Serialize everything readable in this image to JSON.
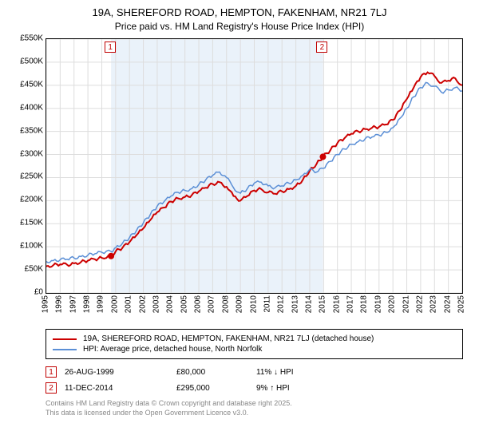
{
  "title": "19A, SHEREFORD ROAD, HEMPTON, FAKENHAM, NR21 7LJ",
  "subtitle": "Price paid vs. HM Land Registry's House Price Index (HPI)",
  "chart": {
    "type": "line",
    "background_color": "#ffffff",
    "band_color": "#eaf2fa",
    "grid_color": "#dddddd",
    "axis_color": "#000000",
    "ylim": [
      0,
      550000
    ],
    "ytick_step": 50000,
    "y_ticks": [
      "£0",
      "£50K",
      "£100K",
      "£150K",
      "£200K",
      "£250K",
      "£300K",
      "£350K",
      "£400K",
      "£450K",
      "£500K",
      "£550K"
    ],
    "x_years": [
      1995,
      1996,
      1997,
      1998,
      1999,
      2000,
      2001,
      2002,
      2003,
      2004,
      2005,
      2006,
      2007,
      2008,
      2009,
      2010,
      2011,
      2012,
      2013,
      2014,
      2015,
      2016,
      2017,
      2018,
      2019,
      2020,
      2021,
      2022,
      2023,
      2024,
      2025
    ],
    "series": [
      {
        "name": "property",
        "color": "#cc0000",
        "width": 2,
        "points": [
          [
            1995,
            58000
          ],
          [
            1995.5,
            60000
          ],
          [
            1996,
            62000
          ],
          [
            1996.5,
            61000
          ],
          [
            1997,
            64000
          ],
          [
            1997.5,
            67000
          ],
          [
            1998,
            70000
          ],
          [
            1998.5,
            73000
          ],
          [
            1999,
            76000
          ],
          [
            1999.67,
            80000
          ],
          [
            2000,
            90000
          ],
          [
            2000.5,
            98000
          ],
          [
            2001,
            110000
          ],
          [
            2001.5,
            125000
          ],
          [
            2002,
            140000
          ],
          [
            2002.5,
            158000
          ],
          [
            2003,
            175000
          ],
          [
            2003.5,
            185000
          ],
          [
            2004,
            198000
          ],
          [
            2004.5,
            205000
          ],
          [
            2005,
            208000
          ],
          [
            2005.5,
            212000
          ],
          [
            2006,
            220000
          ],
          [
            2006.5,
            228000
          ],
          [
            2007,
            236000
          ],
          [
            2007.5,
            240000
          ],
          [
            2008,
            230000
          ],
          [
            2008.5,
            210000
          ],
          [
            2009,
            200000
          ],
          [
            2009.5,
            210000
          ],
          [
            2010,
            222000
          ],
          [
            2010.5,
            225000
          ],
          [
            2011,
            218000
          ],
          [
            2011.5,
            215000
          ],
          [
            2012,
            220000
          ],
          [
            2012.5,
            225000
          ],
          [
            2013,
            232000
          ],
          [
            2013.5,
            245000
          ],
          [
            2014,
            265000
          ],
          [
            2014.5,
            280000
          ],
          [
            2014.95,
            295000
          ],
          [
            2015.5,
            310000
          ],
          [
            2016,
            325000
          ],
          [
            2016.5,
            335000
          ],
          [
            2017,
            345000
          ],
          [
            2017.5,
            350000
          ],
          [
            2018,
            355000
          ],
          [
            2018.5,
            358000
          ],
          [
            2019,
            360000
          ],
          [
            2019.5,
            365000
          ],
          [
            2020,
            375000
          ],
          [
            2020.5,
            395000
          ],
          [
            2021,
            420000
          ],
          [
            2021.5,
            445000
          ],
          [
            2022,
            468000
          ],
          [
            2022.5,
            478000
          ],
          [
            2023,
            470000
          ],
          [
            2023.5,
            455000
          ],
          [
            2024,
            460000
          ],
          [
            2024.5,
            465000
          ],
          [
            2025,
            450000
          ]
        ]
      },
      {
        "name": "hpi",
        "color": "#5b8fd6",
        "width": 1.5,
        "points": [
          [
            1995,
            68000
          ],
          [
            1995.5,
            70000
          ],
          [
            1996,
            72000
          ],
          [
            1996.5,
            73000
          ],
          [
            1997,
            76000
          ],
          [
            1997.5,
            79000
          ],
          [
            1998,
            82000
          ],
          [
            1998.5,
            85000
          ],
          [
            1999,
            88000
          ],
          [
            1999.67,
            90000
          ],
          [
            2000,
            98000
          ],
          [
            2000.5,
            108000
          ],
          [
            2001,
            120000
          ],
          [
            2001.5,
            135000
          ],
          [
            2002,
            152000
          ],
          [
            2002.5,
            170000
          ],
          [
            2003,
            188000
          ],
          [
            2003.5,
            198000
          ],
          [
            2004,
            210000
          ],
          [
            2004.5,
            218000
          ],
          [
            2005,
            222000
          ],
          [
            2005.5,
            226000
          ],
          [
            2006,
            235000
          ],
          [
            2006.5,
            245000
          ],
          [
            2007,
            255000
          ],
          [
            2007.5,
            262000
          ],
          [
            2008,
            250000
          ],
          [
            2008.5,
            228000
          ],
          [
            2009,
            216000
          ],
          [
            2009.5,
            226000
          ],
          [
            2010,
            238000
          ],
          [
            2010.5,
            240000
          ],
          [
            2011,
            232000
          ],
          [
            2011.5,
            228000
          ],
          [
            2012,
            232000
          ],
          [
            2012.5,
            238000
          ],
          [
            2013,
            245000
          ],
          [
            2013.5,
            255000
          ],
          [
            2014,
            268000
          ],
          [
            2014.5,
            262000
          ],
          [
            2014.95,
            270000
          ],
          [
            2015.5,
            285000
          ],
          [
            2016,
            300000
          ],
          [
            2016.5,
            312000
          ],
          [
            2017,
            322000
          ],
          [
            2017.5,
            328000
          ],
          [
            2018,
            334000
          ],
          [
            2018.5,
            338000
          ],
          [
            2019,
            342000
          ],
          [
            2019.5,
            348000
          ],
          [
            2020,
            358000
          ],
          [
            2020.5,
            378000
          ],
          [
            2021,
            400000
          ],
          [
            2021.5,
            425000
          ],
          [
            2022,
            445000
          ],
          [
            2022.5,
            455000
          ],
          [
            2023,
            448000
          ],
          [
            2023.5,
            435000
          ],
          [
            2024,
            440000
          ],
          [
            2024.5,
            445000
          ],
          [
            2025,
            438000
          ]
        ]
      }
    ],
    "sale_markers": [
      {
        "n": "1",
        "x": 1999.67,
        "y": 80000
      },
      {
        "n": "2",
        "x": 2014.95,
        "y": 295000
      }
    ],
    "marker_color": "#cc0000",
    "marker_radius": 4
  },
  "legend": {
    "items": [
      {
        "color": "#cc0000",
        "width": 2,
        "label": "19A, SHEREFORD ROAD, HEMPTON, FAKENHAM, NR21 7LJ (detached house)"
      },
      {
        "color": "#5b8fd6",
        "width": 2,
        "label": "HPI: Average price, detached house, North Norfolk"
      }
    ]
  },
  "sales": [
    {
      "n": "1",
      "date": "26-AUG-1999",
      "price": "£80,000",
      "diff": "11% ↓ HPI",
      "arrow": "↓"
    },
    {
      "n": "2",
      "date": "11-DEC-2014",
      "price": "£295,000",
      "diff": "9% ↑ HPI",
      "arrow": "↑"
    }
  ],
  "footer": {
    "line1": "Contains HM Land Registry data © Crown copyright and database right 2025.",
    "line2": "This data is licensed under the Open Government Licence v3.0."
  }
}
